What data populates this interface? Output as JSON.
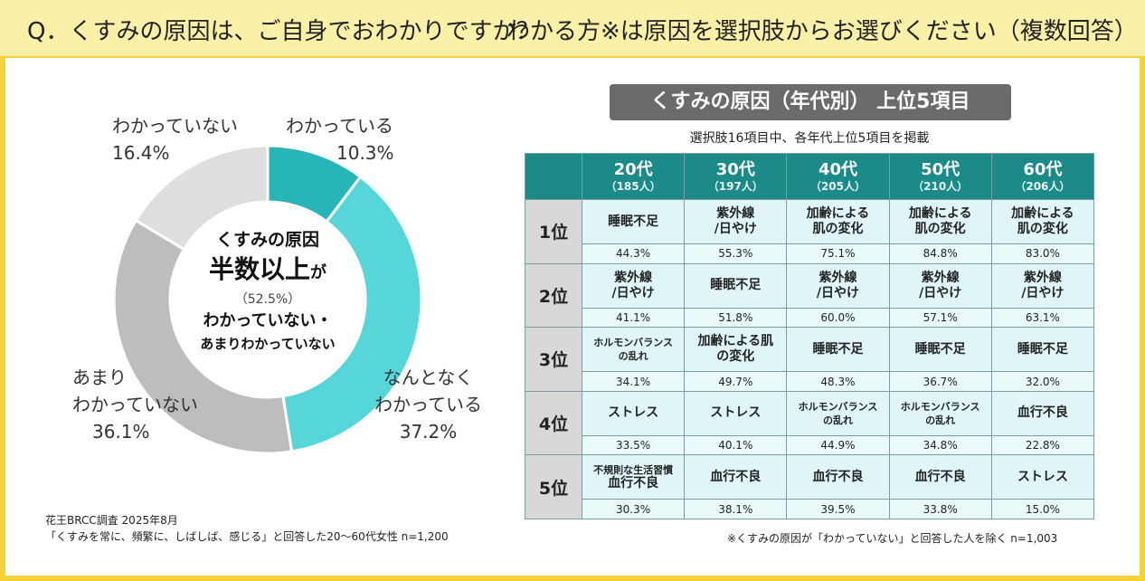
{
  "header": {
    "question": "Q．くすみの原因は、ご自身でおわかりですか？",
    "sub": "わかる方※は原因を選択肢からお選びください（複数回答）"
  },
  "chart_data": [
    {
      "type": "pie",
      "slices": [
        {
          "label": "わかっている",
          "value": 10.3,
          "pct": "10.3%",
          "color": "#27b5b8"
        },
        {
          "label": "なんとなくわかっている",
          "value": 37.2,
          "pct": "37.2%",
          "color": "#56d6d9"
        },
        {
          "label": "あまりわかっていない",
          "value": 36.1,
          "pct": "36.1%",
          "color": "#bdbdbd"
        },
        {
          "label": "わかっていない",
          "value": 16.4,
          "pct": "16.4%",
          "color": "#dedede"
        }
      ],
      "labels": {
        "s0_line1": "わかっている",
        "s1_line1": "なんとなく",
        "s1_line2": "わかっている",
        "s2_line1": "あまり",
        "s2_line2": "わかっていない",
        "s3_line1": "わかっていない"
      },
      "center": {
        "line1": "くすみの原因",
        "line2_big": "半数以上",
        "line2_small": "が",
        "line3": "（52.5%）",
        "line4": "わかっていない・",
        "line5": "あまりわかっていない"
      }
    },
    {
      "type": "table",
      "title": "くすみの原因（年代別） 上位5項目",
      "subtitle": "選択肢16項目中、各年代上位5項目を掲載",
      "columns": [
        {
          "age": "20代",
          "n": "（185人）"
        },
        {
          "age": "30代",
          "n": "（197人）"
        },
        {
          "age": "40代",
          "n": "（205人）"
        },
        {
          "age": "50代",
          "n": "（210人）"
        },
        {
          "age": "60代",
          "n": "（206人）"
        }
      ],
      "rows": [
        {
          "rank": "1位",
          "cells": [
            {
              "l1": "睡眠不足",
              "l2": "",
              "pct": "44.3%",
              "small": false
            },
            {
              "l1": "紫外線",
              "l2": "/日やけ",
              "pct": "55.3%",
              "small": false
            },
            {
              "l1": "加齢による",
              "l2": "肌の変化",
              "pct": "75.1%",
              "small": false
            },
            {
              "l1": "加齢による",
              "l2": "肌の変化",
              "pct": "84.8%",
              "small": false
            },
            {
              "l1": "加齢による",
              "l2": "肌の変化",
              "pct": "83.0%",
              "small": false
            }
          ]
        },
        {
          "rank": "2位",
          "cells": [
            {
              "l1": "紫外線",
              "l2": "/日やけ",
              "pct": "41.1%",
              "small": false
            },
            {
              "l1": "睡眠不足",
              "l2": "",
              "pct": "51.8%",
              "small": false
            },
            {
              "l1": "紫外線",
              "l2": "/日やけ",
              "pct": "60.0%",
              "small": false
            },
            {
              "l1": "紫外線",
              "l2": "/日やけ",
              "pct": "57.1%",
              "small": false
            },
            {
              "l1": "紫外線",
              "l2": "/日やけ",
              "pct": "63.1%",
              "small": false
            }
          ]
        },
        {
          "rank": "3位",
          "cells": [
            {
              "l1": "ホルモンバランス",
              "l2": "の乱れ",
              "pct": "34.1%",
              "small": true
            },
            {
              "l1": "加齢による肌",
              "l2": "の変化",
              "pct": "49.7%",
              "small": false
            },
            {
              "l1": "睡眠不足",
              "l2": "",
              "pct": "48.3%",
              "small": false
            },
            {
              "l1": "睡眠不足",
              "l2": "",
              "pct": "36.7%",
              "small": false
            },
            {
              "l1": "睡眠不足",
              "l2": "",
              "pct": "32.0%",
              "small": false
            }
          ]
        },
        {
          "rank": "4位",
          "cells": [
            {
              "l1": "ストレス",
              "l2": "",
              "pct": "33.5%",
              "small": false
            },
            {
              "l1": "ストレス",
              "l2": "",
              "pct": "40.1%",
              "small": false
            },
            {
              "l1": "ホルモンバランス",
              "l2": "の乱れ",
              "pct": "44.9%",
              "small": true
            },
            {
              "l1": "ホルモンバランス",
              "l2": "の乱れ",
              "pct": "34.8%",
              "small": true
            },
            {
              "l1": "血行不良",
              "l2": "",
              "pct": "22.8%",
              "small": false
            }
          ]
        },
        {
          "rank": "5位",
          "cells": [
            {
              "l1": "不規則な生活習慣",
              "l2": "血行不良",
              "pct": "30.3%",
              "small": true
            },
            {
              "l1": "血行不良",
              "l2": "",
              "pct": "38.1%",
              "small": false
            },
            {
              "l1": "血行不良",
              "l2": "",
              "pct": "39.5%",
              "small": false
            },
            {
              "l1": "血行不良",
              "l2": "",
              "pct": "33.8%",
              "small": false
            },
            {
              "l1": "ストレス",
              "l2": "",
              "pct": "15.0%",
              "small": false
            }
          ]
        }
      ],
      "note": "※くすみの原因が「わかっていない」と回答した人を除く n=1,003"
    }
  ],
  "source": {
    "line1": "花王BRCC調査 2025年8月",
    "line2": "「くすみを常に、頻繁に、しばしば、感じる」と回答した20～60代女性  n=1,200"
  }
}
